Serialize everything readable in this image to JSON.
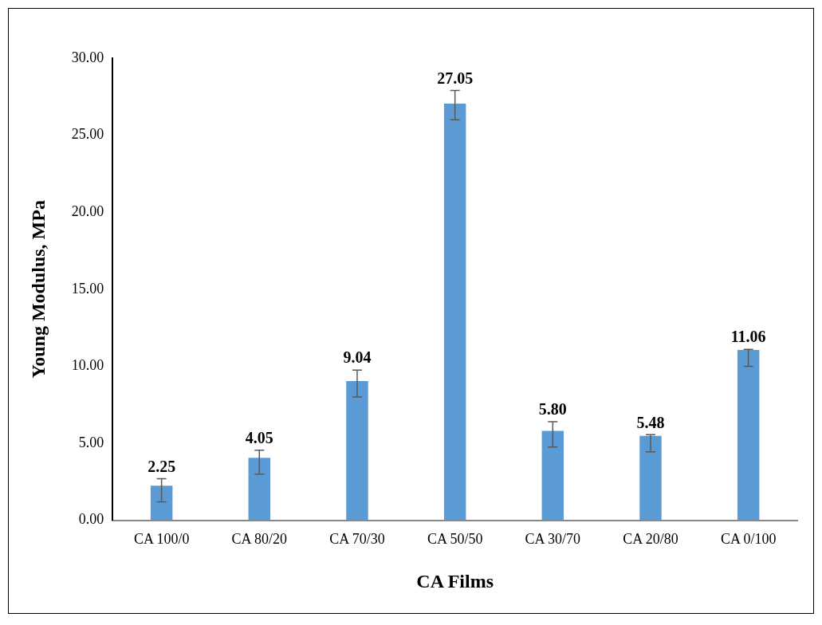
{
  "chart_data": {
    "type": "bar",
    "xlabel": "CA Films",
    "ylabel": "Young Modulus, MPa",
    "categories": [
      "CA 100/0",
      "CA 80/20",
      "CA 70/30",
      "CA 50/50",
      "CA 30/70",
      "CA 20/80",
      "CA 0/100"
    ],
    "values": [
      2.25,
      4.05,
      9.04,
      27.05,
      5.8,
      5.48,
      11.06
    ],
    "value_labels": [
      "2.25",
      "4.05",
      "9.04",
      "27.05",
      "5.80",
      "5.48",
      "11.06"
    ],
    "errors": [
      [
        1.2,
        2.7
      ],
      [
        3.0,
        4.55
      ],
      [
        8.0,
        9.75
      ],
      [
        26.0,
        27.9
      ],
      [
        4.75,
        6.4
      ],
      [
        4.45,
        5.55
      ],
      [
        10.0,
        11.1
      ]
    ],
    "color": "#5b9bd5",
    "ylim": [
      0,
      30
    ],
    "yticks": [
      {
        "value": 0,
        "label": "0.00"
      },
      {
        "value": 5,
        "label": "5.00"
      },
      {
        "value": 10,
        "label": "10.00"
      },
      {
        "value": 15,
        "label": "15.00"
      },
      {
        "value": 20,
        "label": "20.00"
      },
      {
        "value": 25,
        "label": "25.00"
      },
      {
        "value": 30,
        "label": "30.00"
      }
    ],
    "grid": false,
    "legend": false
  }
}
